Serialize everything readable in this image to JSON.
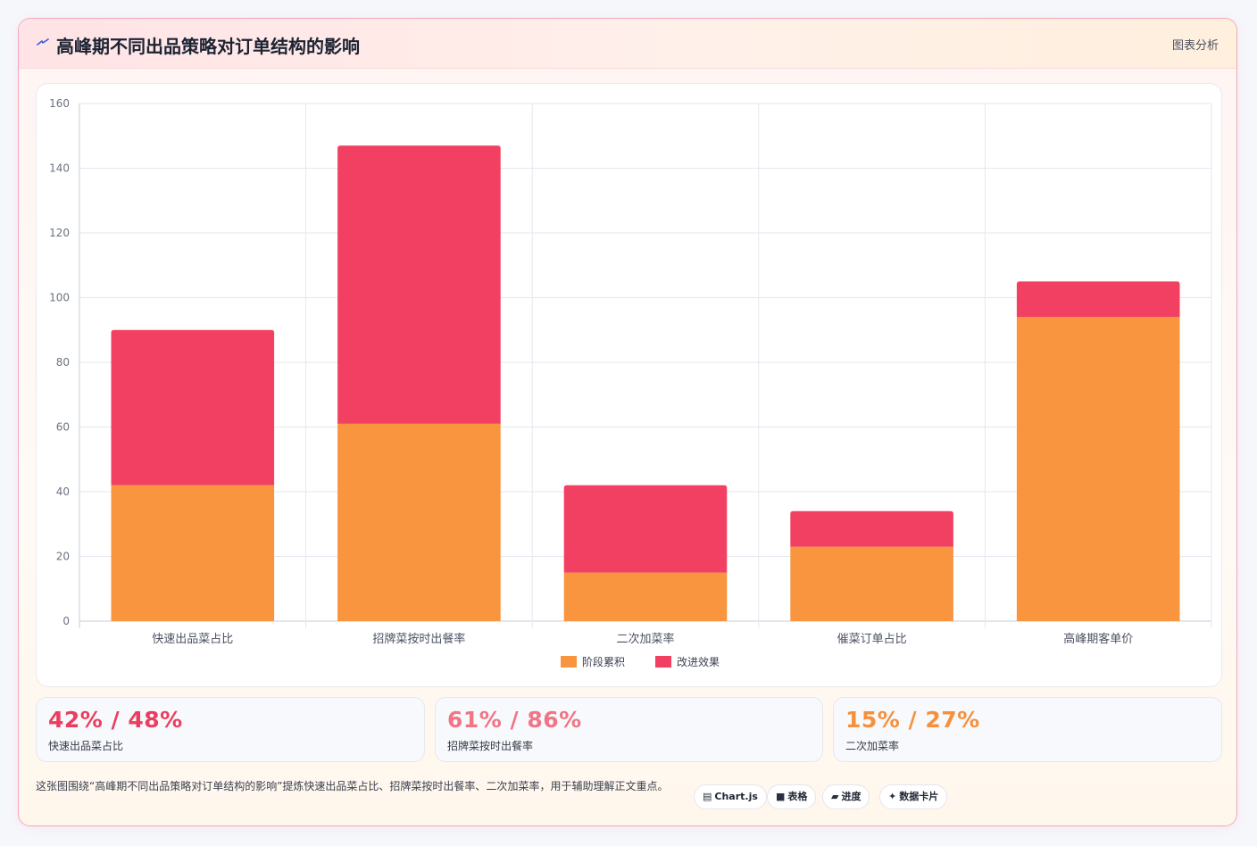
{
  "header": {
    "title": "高峰期不同出品策略对订单结构的影响",
    "tag": "图表分析",
    "icon": "bolt-icon"
  },
  "colors": {
    "stage": "#f9943f",
    "improve": "#f24062",
    "stat1": "#ea3e5f",
    "stat2": "#f07585",
    "stat3": "#f6903d"
  },
  "chart_data": {
    "type": "bar",
    "stacked": true,
    "categories": [
      "快速出品菜占比",
      "招牌菜按时出餐率",
      "二次加菜率",
      "催菜订单占比",
      "高峰期客单价"
    ],
    "series": [
      {
        "name": "阶段累积",
        "color": "#f9943f",
        "values": [
          42,
          61,
          15,
          23,
          94
        ]
      },
      {
        "name": "改进效果",
        "color": "#f24062",
        "values": [
          48,
          86,
          27,
          11,
          11
        ]
      }
    ],
    "ylim": [
      0,
      160
    ],
    "yticks": [
      0,
      20,
      40,
      60,
      80,
      100,
      120,
      140,
      160
    ],
    "grid": true,
    "legend": "bottom"
  },
  "stats": [
    {
      "value": "42% / 48%",
      "label": "快速出品菜占比"
    },
    {
      "value": "61% / 86%",
      "label": "招牌菜按时出餐率"
    },
    {
      "value": "15% / 27%",
      "label": "二次加菜率"
    }
  ],
  "description": "这张图围绕“高峰期不同出品策略对订单结构的影响”提炼快速出品菜占比、招牌菜按时出餐率、二次加菜率，用于辅助理解正文重点。",
  "chips": [
    {
      "icon": "chart-icon",
      "glyph": "▤",
      "label": "Chart.js"
    },
    {
      "icon": "table-icon",
      "glyph": "■",
      "label": "表格"
    },
    {
      "icon": "progress-icon",
      "glyph": "▰",
      "label": "进度"
    },
    {
      "icon": "sparkle-icon",
      "glyph": "✦",
      "label": "数据卡片"
    }
  ]
}
